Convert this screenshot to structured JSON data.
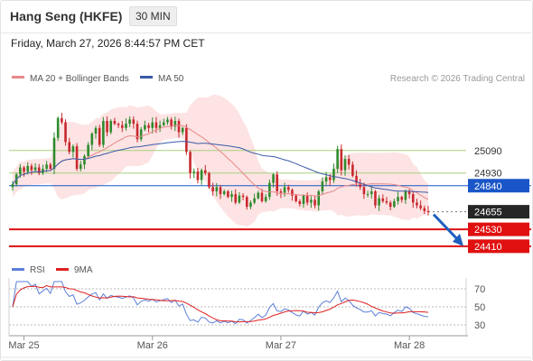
{
  "header": {
    "title": "Hang Seng (HKFE)",
    "interval": "30 MIN"
  },
  "timestamp": "Friday, March 27, 2026 8:44:57 PM CET",
  "legend": {
    "ma20": "MA 20 + Bollinger Bands",
    "ma50": "MA 50",
    "credit": "Research © 2026 Trading Central",
    "rsi": "RSI",
    "ma9": "9MA"
  },
  "colors": {
    "up": "#2e8b2e",
    "down": "#c8282e",
    "ma20": "#e8888a",
    "ma50": "#3a5aa8",
    "bb_fill": "#fcdada",
    "resistance": "#a8d080",
    "pivot": "#1a56c8",
    "support": "#e01010",
    "current": "#262626",
    "rsi": "#5b7fd8",
    "rsi_ma": "#e02020"
  },
  "chart_data": [
    {
      "type": "candlestick",
      "title": "",
      "x_ticks": [
        "Mar 25",
        "Mar 26",
        "Mar 27",
        "Mar 28"
      ],
      "ylim": [
        24300,
        25550
      ],
      "levels": [
        {
          "kind": "resistance",
          "value": 25090,
          "label": "25090"
        },
        {
          "kind": "resistance",
          "value": 24930,
          "label": "24930"
        },
        {
          "kind": "pivot",
          "value": 24840,
          "label": "24840"
        },
        {
          "kind": "current",
          "value": 24655,
          "label": "24655"
        },
        {
          "kind": "support",
          "value": 24530,
          "label": "24530"
        },
        {
          "kind": "support",
          "value": 24410,
          "label": "24410"
        }
      ],
      "closes": [
        24850,
        24920,
        24970,
        24940,
        24980,
        24950,
        24970,
        24930,
        24960,
        24990,
        24960,
        25180,
        25320,
        25290,
        25150,
        25080,
        25120,
        24960,
        24990,
        25050,
        25130,
        25210,
        25250,
        25130,
        25300,
        25220,
        25300,
        25280,
        25270,
        25250,
        25280,
        25310,
        25280,
        25170,
        25240,
        25270,
        25250,
        25290,
        25250,
        25270,
        25290,
        25310,
        25260,
        25300,
        25220,
        25250,
        25080,
        24930,
        24940,
        24880,
        24950,
        24930,
        24830,
        24800,
        24830,
        24780,
        24800,
        24760,
        24780,
        24720,
        24770,
        24760,
        24690,
        24720,
        24750,
        24790,
        24730,
        24760,
        24860,
        24920,
        24800,
        24790,
        24830,
        24810,
        24770,
        24730,
        24710,
        24770,
        24720,
        24740,
        24700,
        24800,
        24870,
        24900,
        24880,
        24960,
        25100,
        24950,
        25030,
        24990,
        24910,
        24860,
        24830,
        24780,
        24780,
        24800,
        24700,
        24750,
        24730,
        24720,
        24690,
        24730,
        24760,
        24740,
        24800,
        24780,
        24720,
        24700,
        24680,
        24660,
        24655
      ]
    },
    {
      "type": "line",
      "title": "",
      "series_names": [
        "RSI",
        "9MA"
      ],
      "y_ticks": [
        70,
        50,
        30
      ],
      "ylim": [
        20,
        80
      ]
    }
  ]
}
